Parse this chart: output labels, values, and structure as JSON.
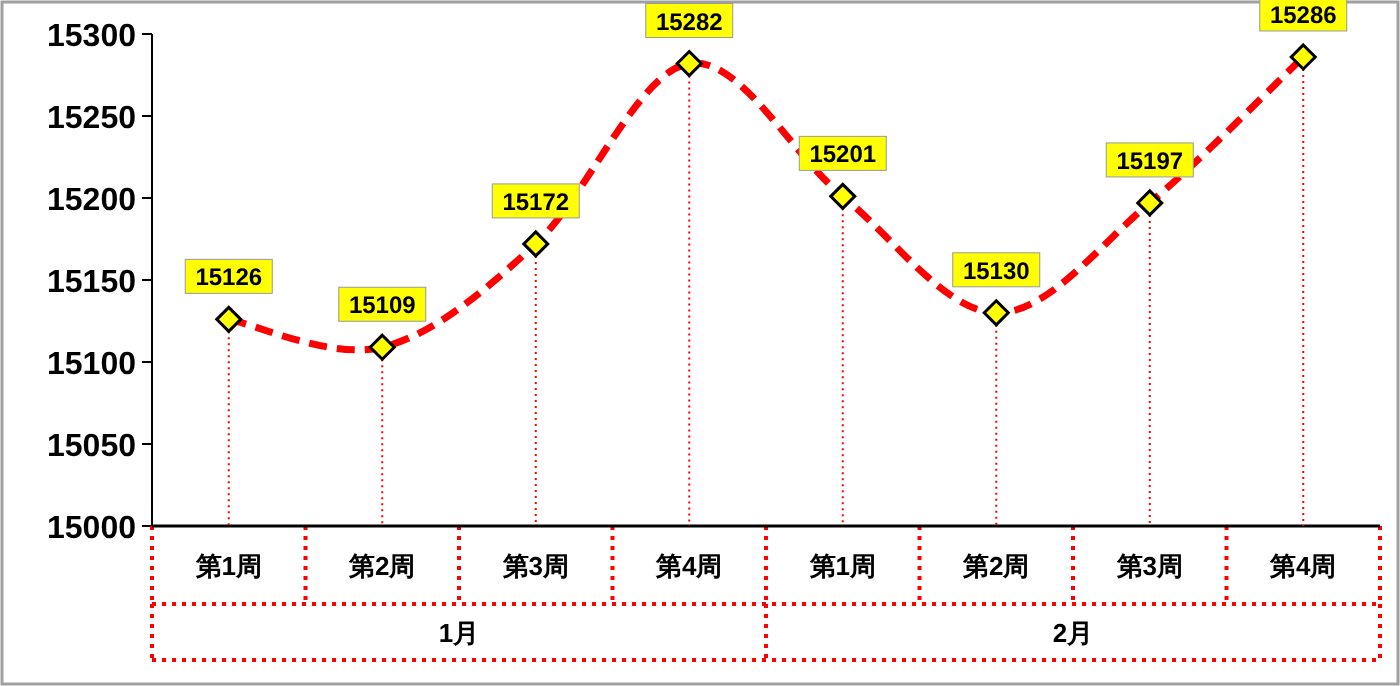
{
  "chart_data": {
    "type": "line",
    "categories": [
      "第1周",
      "第2周",
      "第3周",
      "第4周",
      "第1周",
      "第2周",
      "第3周",
      "第4周"
    ],
    "series": [
      {
        "color": "#ff0000",
        "values": [
          15126,
          15109,
          15172,
          15282,
          15201,
          15130,
          15197,
          15286
        ]
      }
    ],
    "ylim": [
      15000,
      15300
    ],
    "yticks": [
      15000,
      15050,
      15100,
      15150,
      15200,
      15250,
      15300
    ],
    "data_labels": true,
    "marker": "diamond",
    "line_style": "dashed",
    "annotations": [
      "1月",
      "2月"
    ]
  }
}
